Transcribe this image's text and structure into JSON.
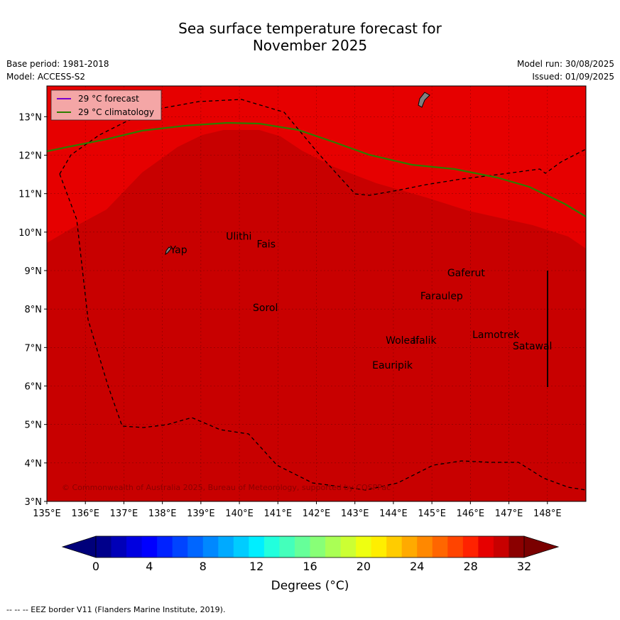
{
  "title_line1": "Sea surface temperature forecast for",
  "title_line2": "November 2025",
  "meta_left": {
    "base_period": "Base period: 1981-2018",
    "model": "Model: ACCESS-S2"
  },
  "meta_right": {
    "model_run": "Model run: 30/08/2025",
    "issued": "Issued: 01/09/2025"
  },
  "map": {
    "lon_range": [
      135,
      149
    ],
    "lat_range": [
      3,
      13.8
    ],
    "lon_ticks": [
      "135°E",
      "136°E",
      "137°E",
      "138°E",
      "139°E",
      "140°E",
      "141°E",
      "142°E",
      "143°E",
      "144°E",
      "145°E",
      "146°E",
      "147°E",
      "148°E"
    ],
    "lat_ticks": [
      "3°N",
      "4°N",
      "5°N",
      "6°N",
      "7°N",
      "8°N",
      "9°N",
      "10°N",
      "11°N",
      "12°N",
      "13°N"
    ],
    "colors": {
      "ocean_warm": "#e60000",
      "ocean_hot": "#c80000",
      "forecast_line": "#7a00cc",
      "climatology_line": "#2e7d00",
      "land": "#808080"
    },
    "legend": [
      {
        "label": "29 °C  forecast",
        "color": "#7a00cc"
      },
      {
        "label": "29 °C  climatology",
        "color": "#2e7d00"
      }
    ],
    "places": [
      {
        "name": "Yap",
        "lon": 138.2,
        "lat": 9.45
      },
      {
        "name": "Ulithi",
        "lon": 139.65,
        "lat": 9.8
      },
      {
        "name": "Fais",
        "lon": 140.45,
        "lat": 9.6
      },
      {
        "name": "Sorol",
        "lon": 140.35,
        "lat": 7.95
      },
      {
        "name": "Gaferut",
        "lon": 145.4,
        "lat": 8.85
      },
      {
        "name": "Faraulep",
        "lon": 144.7,
        "lat": 8.25
      },
      {
        "name": "Woleai",
        "lon": 143.8,
        "lat": 7.1
      },
      {
        "name": "Ifalik",
        "lon": 144.5,
        "lat": 7.1
      },
      {
        "name": "Lamotrek",
        "lon": 146.05,
        "lat": 7.25
      },
      {
        "name": "Satawal",
        "lon": 147.1,
        "lat": 6.95
      },
      {
        "name": "Eauripik",
        "lon": 143.45,
        "lat": 6.45
      }
    ],
    "copyright": "© Commonwealth of Australia 2025, Bureau of Meteorology, supported by COSPPac"
  },
  "colorbar": {
    "ticks": [
      "0",
      "4",
      "8",
      "12",
      "16",
      "20",
      "24",
      "28",
      "32"
    ],
    "units": "Degrees (°C)",
    "colors": [
      "#00008b",
      "#0000b8",
      "#0000e0",
      "#0000ff",
      "#0022ff",
      "#0044ff",
      "#0066ff",
      "#0088ff",
      "#00aaff",
      "#00ccff",
      "#00eeff",
      "#22ffdd",
      "#44ffbb",
      "#66ff99",
      "#88ff77",
      "#aaff55",
      "#ccff33",
      "#eeff11",
      "#ffee00",
      "#ffcc00",
      "#ffaa00",
      "#ff8800",
      "#ff6600",
      "#ff4400",
      "#ff2200",
      "#e60000",
      "#c80000",
      "#8b0000"
    ]
  },
  "footnote": "--  --  -- EEZ border V11 (Flanders Marine Institute, 2019)."
}
